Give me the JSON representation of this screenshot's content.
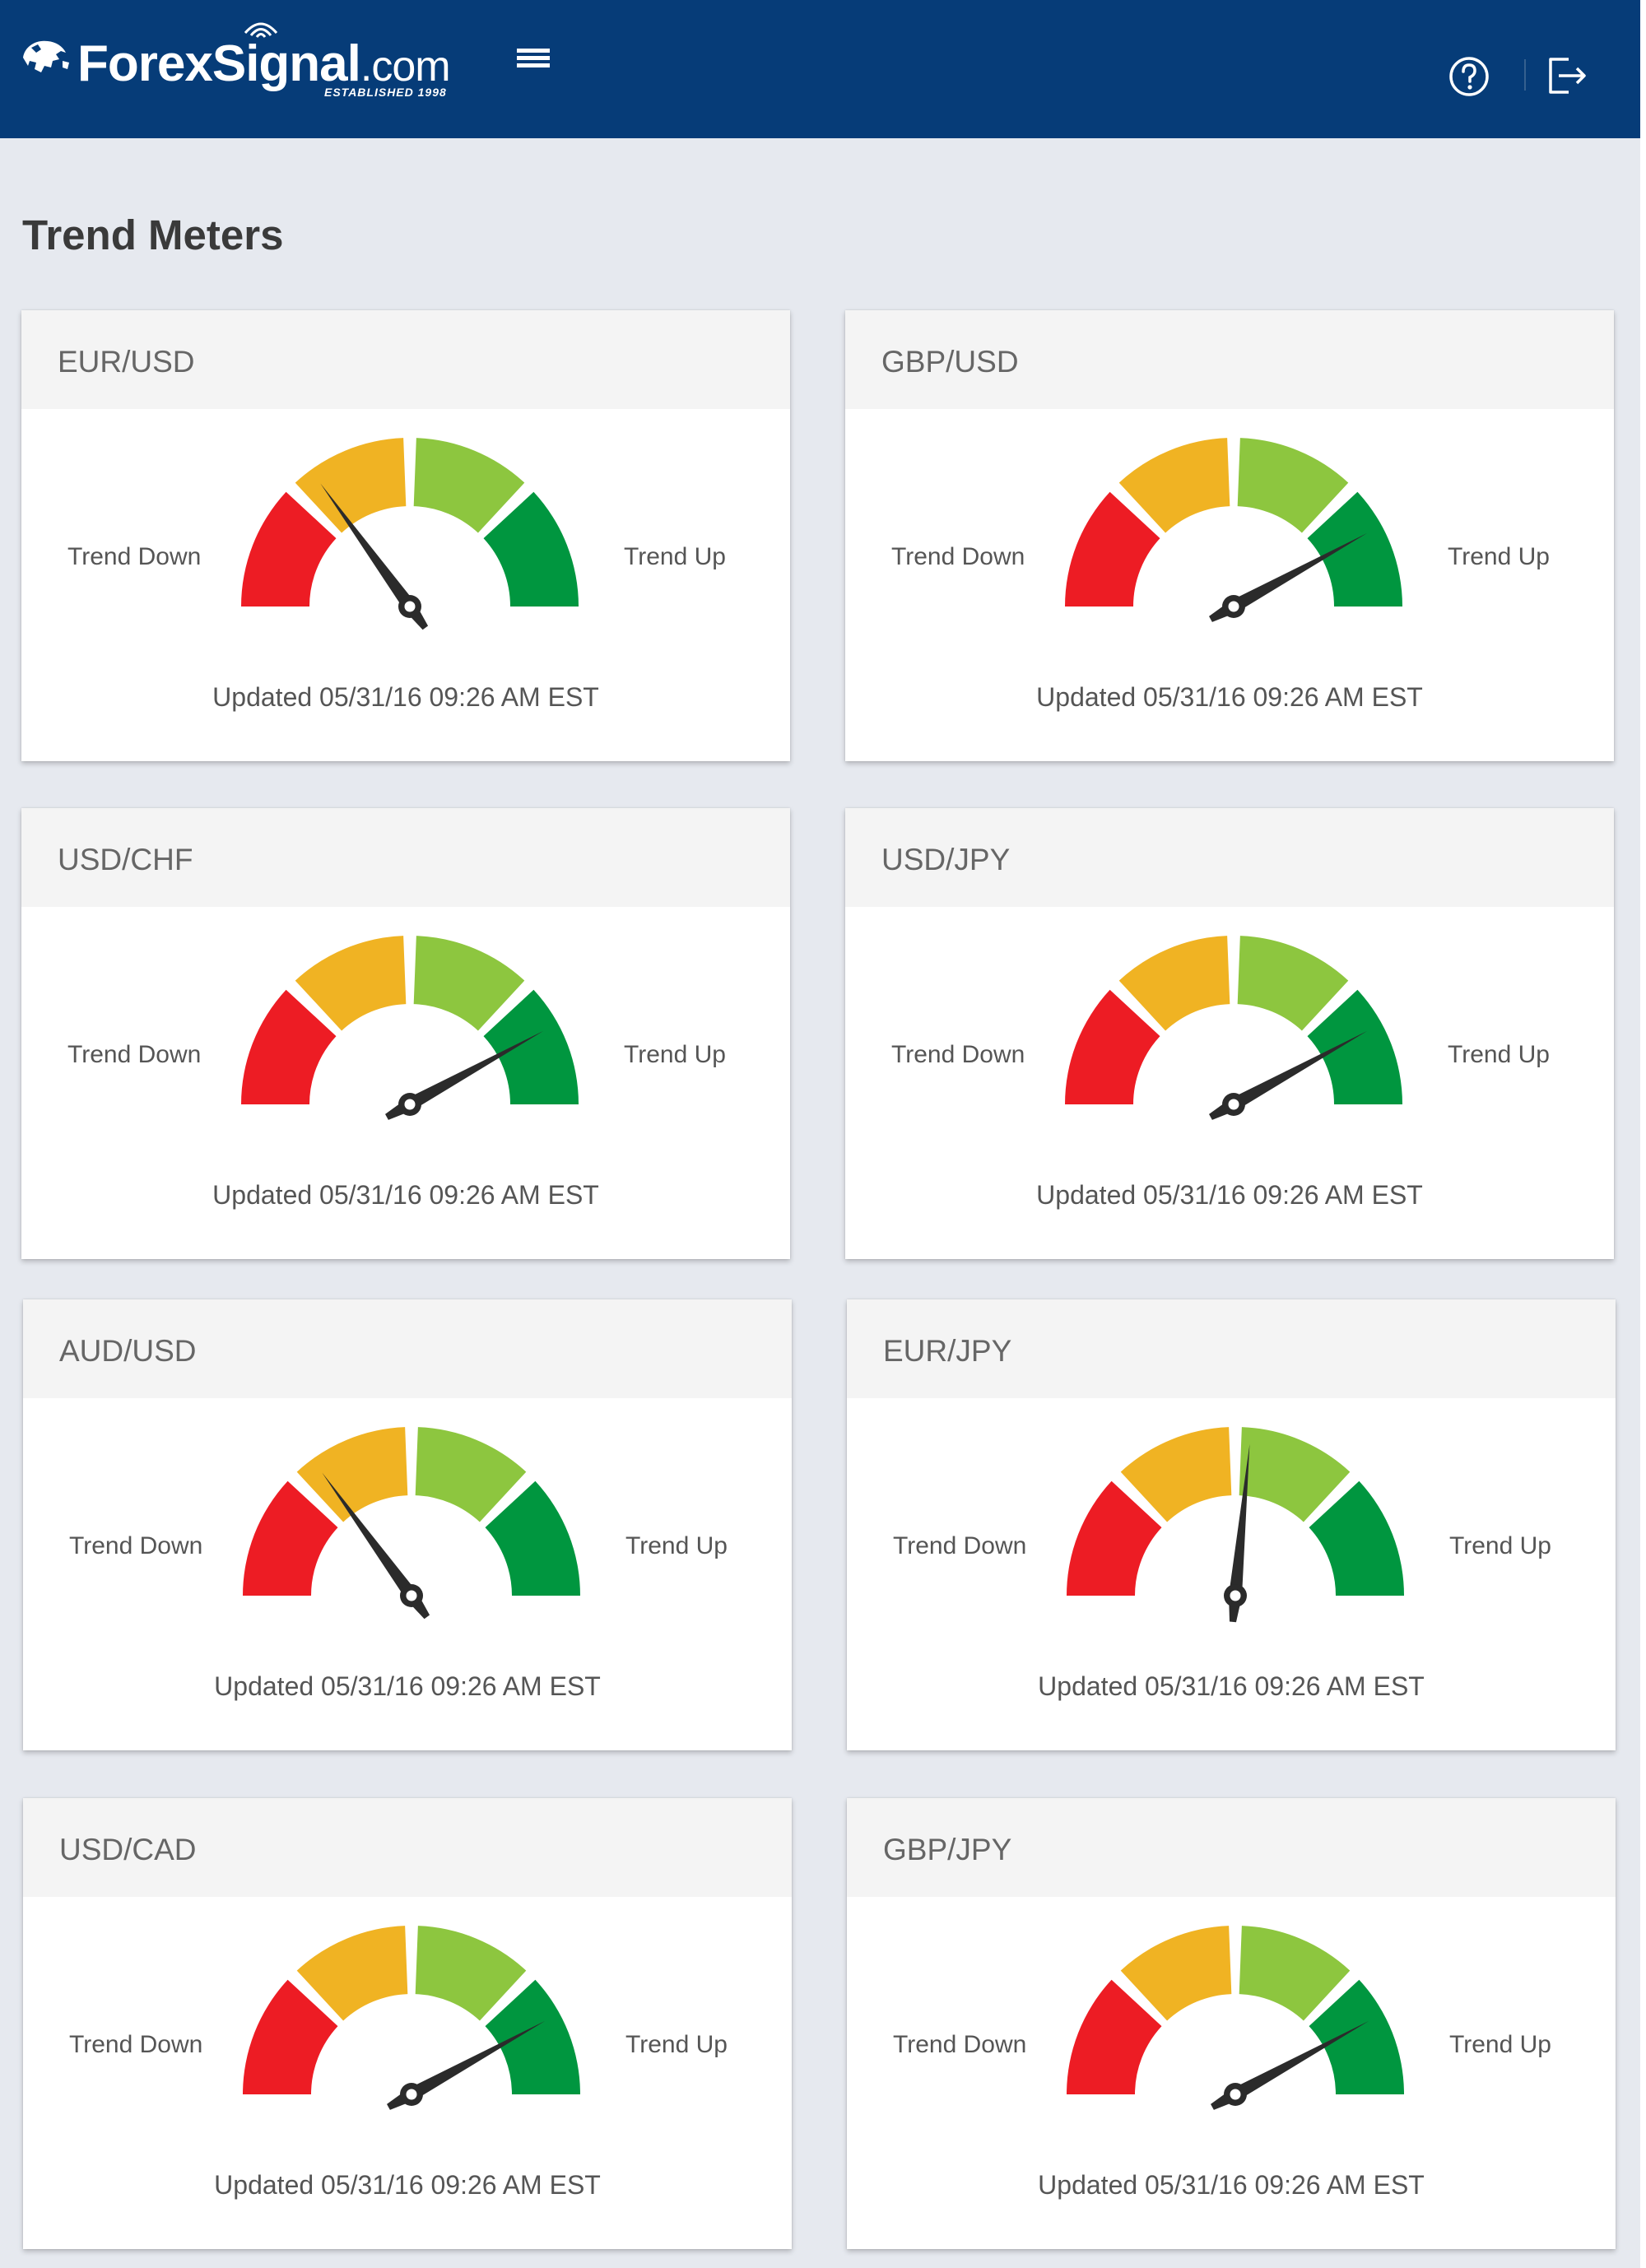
{
  "header": {
    "logo": {
      "name": "ForexSignal",
      "suffix": ".com",
      "tagline": "ESTABLISHED 1998"
    },
    "icons": {
      "menu": "hamburger-menu-icon",
      "help": "help-circle-icon",
      "logout": "logout-icon"
    },
    "colors": {
      "bar": "#063c78"
    }
  },
  "page": {
    "title": "Trend Meters"
  },
  "meters_common": {
    "trend_down": "Trend Down",
    "trend_up": "Trend Up",
    "updated": "Updated 05/31/16 09:26 AM EST"
  },
  "gauge_colors": [
    "#ed1c24",
    "#f0b323",
    "#8dc63f",
    "#00963f"
  ],
  "meters": [
    {
      "pair": "EUR/USD",
      "level": 0.3
    },
    {
      "pair": "GBP/USD",
      "level": 0.84
    },
    {
      "pair": "USD/CHF",
      "level": 0.84
    },
    {
      "pair": "USD/JPY",
      "level": 0.84
    },
    {
      "pair": "AUD/USD",
      "level": 0.3
    },
    {
      "pair": "EUR/JPY",
      "level": 0.53
    },
    {
      "pair": "USD/CAD",
      "level": 0.84
    },
    {
      "pair": "GBP/JPY",
      "level": 0.84
    }
  ]
}
